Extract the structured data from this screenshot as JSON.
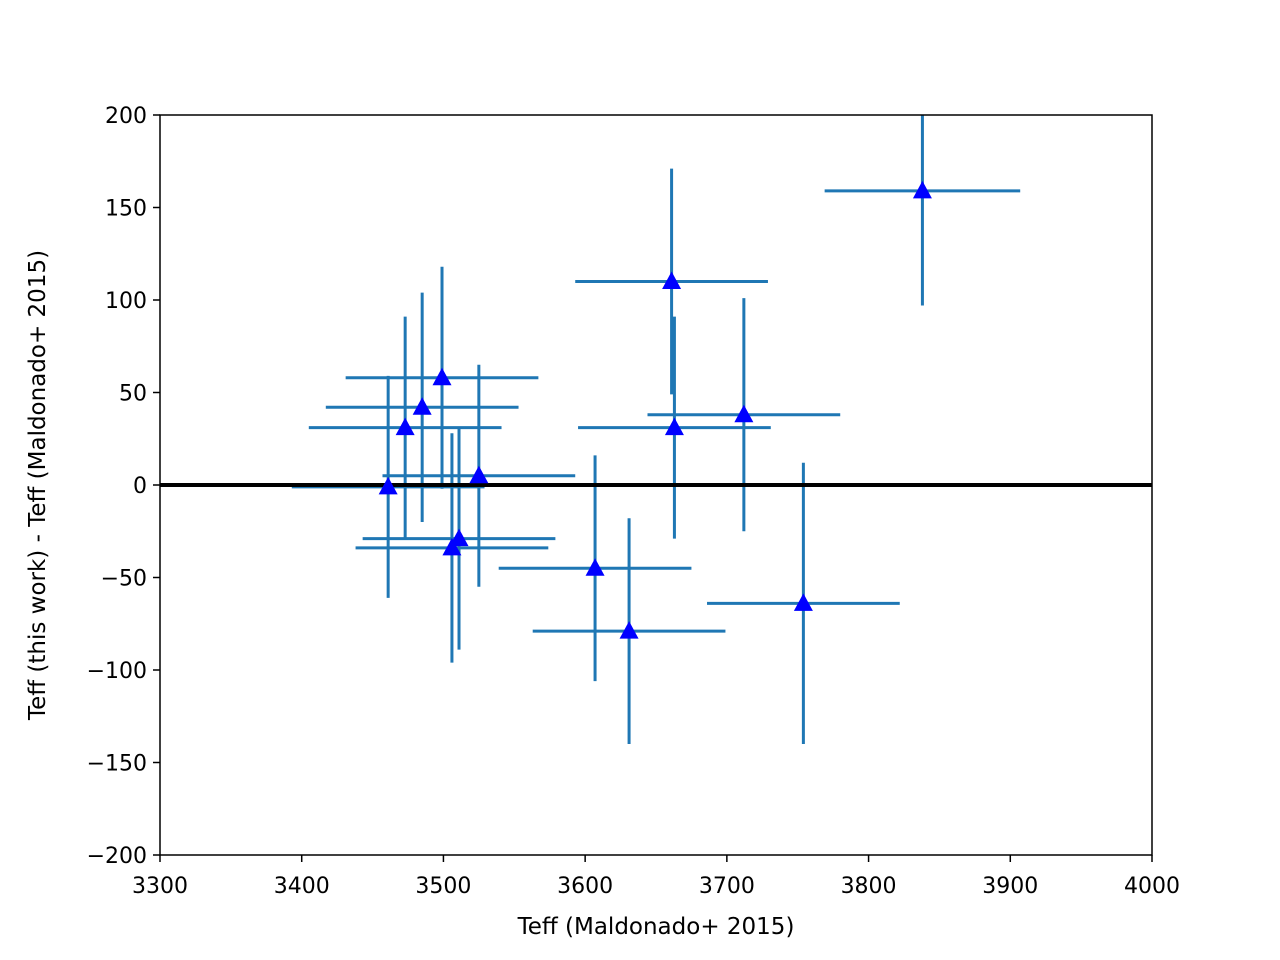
{
  "chart_data": {
    "type": "scatter",
    "title": "",
    "xlabel": "Teff (Maldonado+ 2015)",
    "ylabel": "Teff (this work) - Teff (Maldonado+ 2015)",
    "xlim": [
      3300,
      4000
    ],
    "ylim": [
      -200,
      200
    ],
    "xticks": [
      3300,
      3400,
      3500,
      3600,
      3700,
      3800,
      3900,
      4000
    ],
    "yticks": [
      -200,
      -150,
      -100,
      -50,
      0,
      50,
      100,
      150,
      200
    ],
    "xtick_labels": [
      "3300",
      "3400",
      "3500",
      "3600",
      "3700",
      "3800",
      "3900",
      "4000"
    ],
    "ytick_labels": [
      "−200",
      "−150",
      "−100",
      "−50",
      "0",
      "50",
      "100",
      "150",
      "200"
    ],
    "grid": false,
    "reference_line_y": 0,
    "colors": {
      "marker": "#0000ff",
      "errorbar": "#1f77b4",
      "reference_line": "#000000"
    },
    "points": [
      {
        "x": 3461,
        "y": -1,
        "xerr": 68,
        "yerr": 60
      },
      {
        "x": 3473,
        "y": 31,
        "xerr": 68,
        "yerr": 60
      },
      {
        "x": 3485,
        "y": 42,
        "xerr": 68,
        "yerr": 62
      },
      {
        "x": 3499,
        "y": 58,
        "xerr": 68,
        "yerr": 60
      },
      {
        "x": 3506,
        "y": -34,
        "xerr": 68,
        "yerr": 62
      },
      {
        "x": 3511,
        "y": -29,
        "xerr": 68,
        "yerr": 60
      },
      {
        "x": 3525,
        "y": 5,
        "xerr": 68,
        "yerr": 60
      },
      {
        "x": 3607,
        "y": -45,
        "xerr": 68,
        "yerr": 61
      },
      {
        "x": 3631,
        "y": -79,
        "xerr": 68,
        "yerr": 61
      },
      {
        "x": 3661,
        "y": 110,
        "xerr": 68,
        "yerr": 61
      },
      {
        "x": 3663,
        "y": 31,
        "xerr": 68,
        "yerr": 60
      },
      {
        "x": 3712,
        "y": 38,
        "xerr": 68,
        "yerr": 63
      },
      {
        "x": 3754,
        "y": -64,
        "xerr": 68,
        "yerr": 76
      },
      {
        "x": 3838,
        "y": 159,
        "xerr": 69,
        "yerr": 62
      }
    ]
  }
}
